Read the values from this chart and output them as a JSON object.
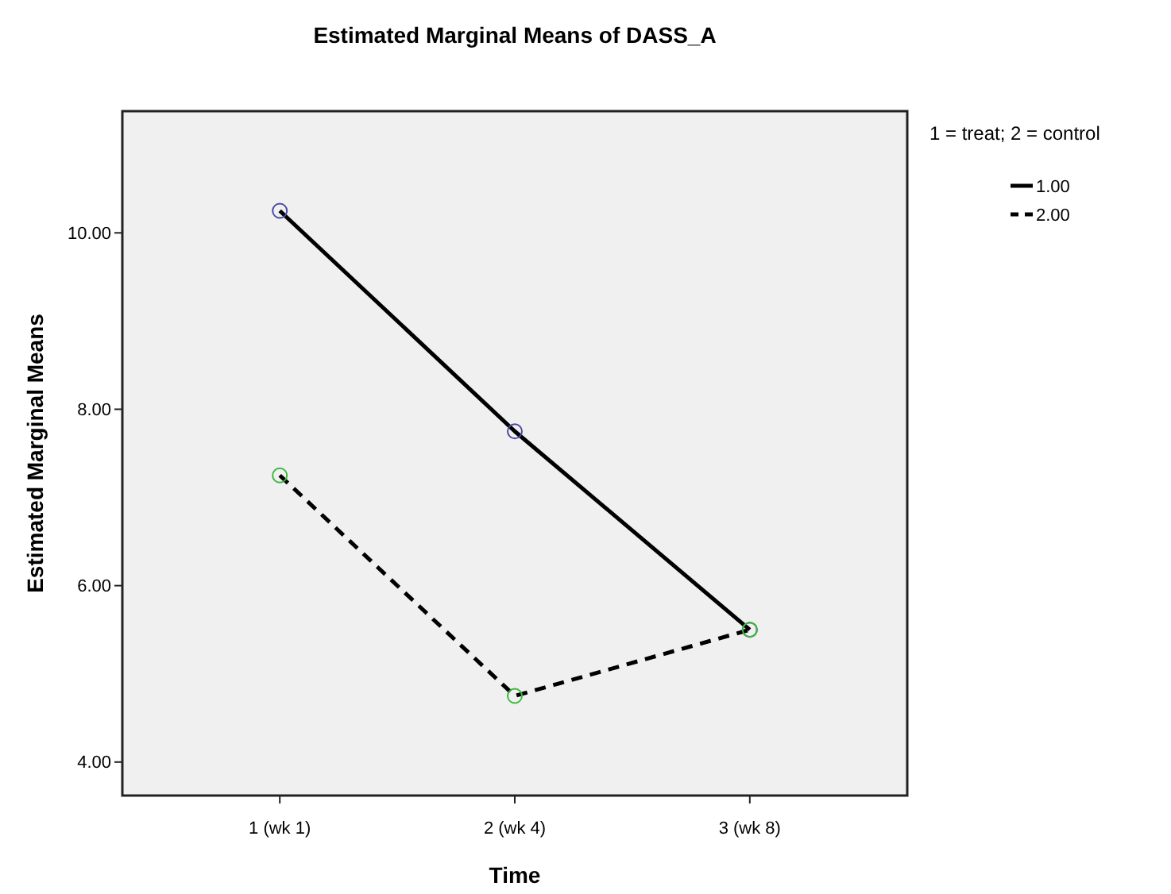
{
  "chart_data": {
    "type": "line",
    "title": "Estimated Marginal Means of DASS_A",
    "xlabel": "Time",
    "ylabel": "Estimated Marginal Means",
    "legend_title": "1 = treat; 2 = control",
    "categories": [
      "1 (wk 1)",
      "2 (wk 4)",
      "3 (wk 8)"
    ],
    "series": [
      {
        "name": "1.00",
        "color": "#000000",
        "colors": [
          "#4a4aa8",
          "#4a4aa8",
          "#4a4aa8"
        ],
        "line_style": "solid",
        "values": [
          10.25,
          7.75,
          5.5
        ]
      },
      {
        "name": "2.00",
        "color": "#000000",
        "colors": [
          "#3cb83c",
          "#3cb83c",
          "#3cb83c"
        ],
        "line_style": "dashed",
        "values": [
          7.25,
          4.75,
          5.5
        ]
      }
    ],
    "ylim": [
      3.62,
      11.38
    ],
    "yticks": [
      {
        "value": 4,
        "label": "4.00"
      },
      {
        "value": 6,
        "label": "6.00"
      },
      {
        "value": 8,
        "label": "8.00"
      },
      {
        "value": 10,
        "label": "10.00"
      }
    ],
    "marker": "circle",
    "grid": false,
    "legend": "top right"
  }
}
